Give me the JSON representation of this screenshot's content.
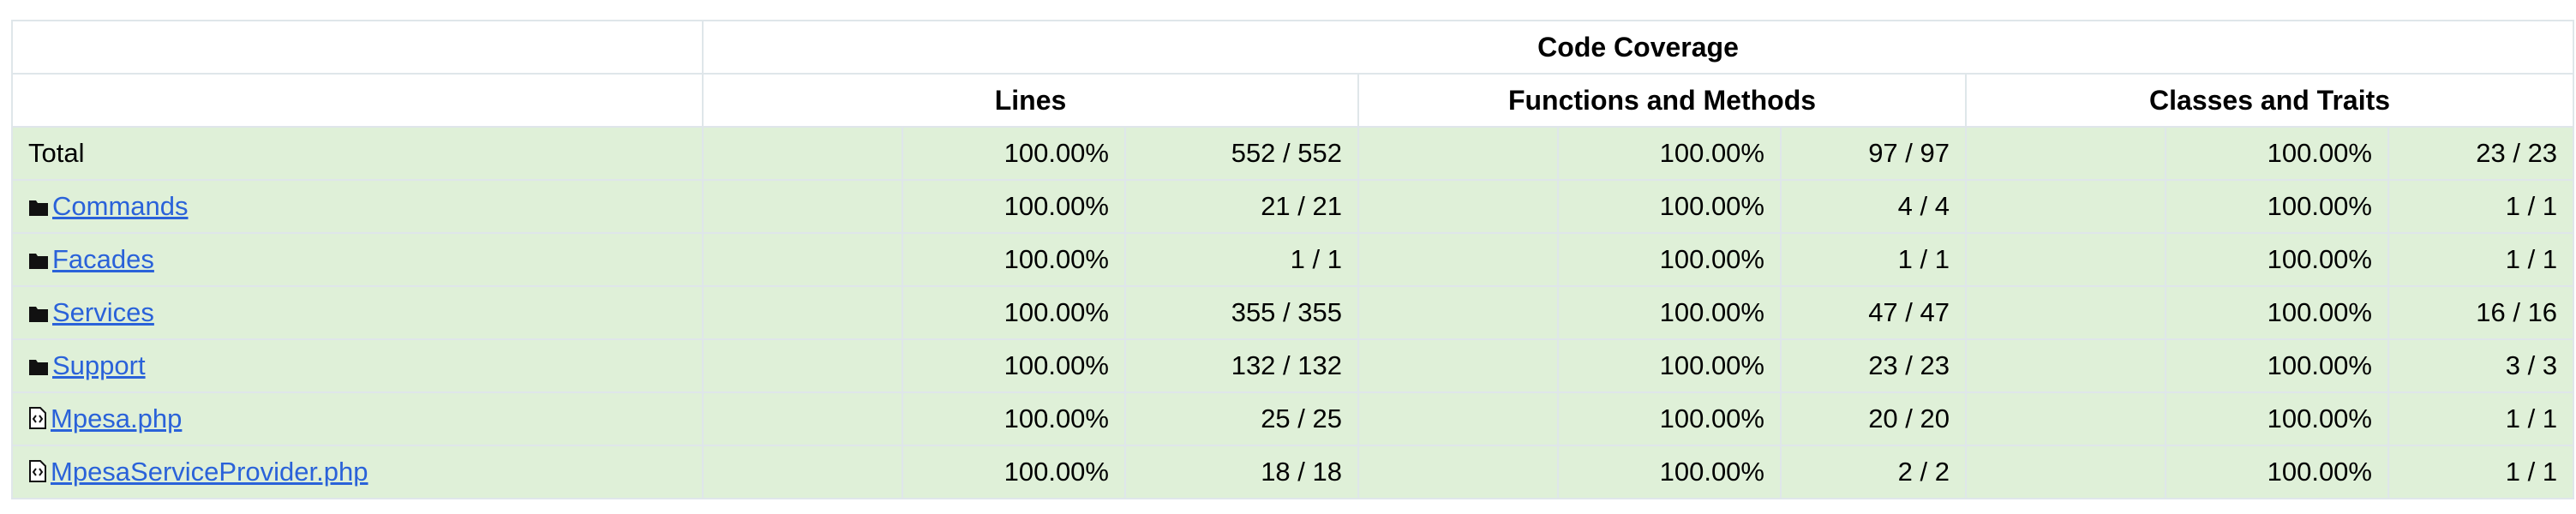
{
  "header": {
    "title": "Code Coverage",
    "columns": [
      "Lines",
      "Functions and Methods",
      "Classes and Traits"
    ]
  },
  "rows": [
    {
      "name": "Total",
      "lines": [
        "100.00%",
        "552 / 552"
      ],
      "functions": [
        "100.00%",
        "97 / 97"
      ],
      "classes": [
        "100.00%",
        "23 / 23"
      ]
    },
    {
      "name": "Commands",
      "icon": "folder",
      "lines": [
        "100.00%",
        "21 / 21"
      ],
      "functions": [
        "100.00%",
        "4 / 4"
      ],
      "classes": [
        "100.00%",
        "1 / 1"
      ]
    },
    {
      "name": "Facades",
      "icon": "folder",
      "lines": [
        "100.00%",
        "1 / 1"
      ],
      "functions": [
        "100.00%",
        "1 / 1"
      ],
      "classes": [
        "100.00%",
        "1 / 1"
      ]
    },
    {
      "name": "Services",
      "icon": "folder",
      "lines": [
        "100.00%",
        "355 / 355"
      ],
      "functions": [
        "100.00%",
        "47 / 47"
      ],
      "classes": [
        "100.00%",
        "16 / 16"
      ]
    },
    {
      "name": "Support",
      "icon": "folder",
      "lines": [
        "100.00%",
        "132 / 132"
      ],
      "functions": [
        "100.00%",
        "23 / 23"
      ],
      "classes": [
        "100.00%",
        "3 / 3"
      ]
    },
    {
      "name": "Mpesa.php",
      "icon": "file",
      "lines": [
        "100.00%",
        "25 / 25"
      ],
      "functions": [
        "100.00%",
        "20 / 20"
      ],
      "classes": [
        "100.00%",
        "1 / 1"
      ]
    },
    {
      "name": "MpesaServiceProvider.php",
      "icon": "file",
      "lines": [
        "100.00%",
        "18 / 18"
      ],
      "functions": [
        "100.00%",
        "2 / 2"
      ],
      "classes": [
        "100.00%",
        "1 / 1"
      ]
    }
  ]
}
